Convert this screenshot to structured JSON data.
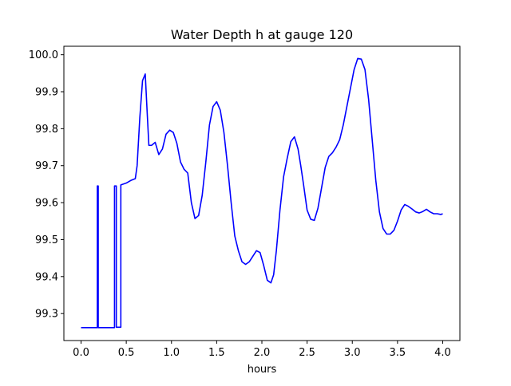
{
  "chart_data": {
    "type": "line",
    "title": "Water Depth h at gauge 120",
    "xlabel": "hours",
    "ylabel": "",
    "xlim": [
      -0.19,
      4.19
    ],
    "ylim": [
      99.227,
      100.023
    ],
    "xticks": [
      0.0,
      0.5,
      1.0,
      1.5,
      2.0,
      2.5,
      3.0,
      3.5,
      4.0
    ],
    "xtick_labels": [
      "0.0",
      "0.5",
      "1.0",
      "1.5",
      "2.0",
      "2.5",
      "3.0",
      "3.5",
      "4.0"
    ],
    "yticks": [
      99.3,
      99.4,
      99.5,
      99.6,
      99.7,
      99.8,
      99.9,
      100.0
    ],
    "ytick_labels": [
      "99.3",
      "99.4",
      "99.5",
      "99.6",
      "99.7",
      "99.8",
      "99.9",
      "100.0"
    ],
    "grid": false,
    "legend": "none",
    "series": [
      {
        "color": "#0000ff",
        "x": [
          0.0,
          0.18,
          0.18,
          0.19,
          0.19,
          0.35,
          0.37,
          0.37,
          0.39,
          0.39,
          0.43,
          0.44,
          0.44,
          0.5,
          0.55,
          0.6,
          0.62,
          0.65,
          0.68,
          0.71,
          0.73,
          0.75,
          0.78,
          0.82,
          0.86,
          0.9,
          0.94,
          0.98,
          1.02,
          1.06,
          1.1,
          1.14,
          1.18,
          1.22,
          1.26,
          1.3,
          1.34,
          1.38,
          1.42,
          1.46,
          1.5,
          1.54,
          1.58,
          1.62,
          1.66,
          1.7,
          1.74,
          1.78,
          1.82,
          1.86,
          1.9,
          1.94,
          1.98,
          2.02,
          2.06,
          2.1,
          2.13,
          2.16,
          2.2,
          2.24,
          2.28,
          2.32,
          2.36,
          2.4,
          2.43,
          2.46,
          2.5,
          2.54,
          2.58,
          2.62,
          2.66,
          2.7,
          2.74,
          2.78,
          2.82,
          2.86,
          2.9,
          2.94,
          2.98,
          3.02,
          3.06,
          3.1,
          3.14,
          3.18,
          3.22,
          3.26,
          3.3,
          3.34,
          3.38,
          3.42,
          3.46,
          3.5,
          3.54,
          3.58,
          3.62,
          3.66,
          3.7,
          3.74,
          3.78,
          3.82,
          3.86,
          3.9,
          3.94,
          3.98,
          4.0
        ],
        "y": [
          99.262,
          99.262,
          99.645,
          99.645,
          99.262,
          99.262,
          99.262,
          99.645,
          99.645,
          99.263,
          99.263,
          99.263,
          99.648,
          99.653,
          99.66,
          99.665,
          99.7,
          99.83,
          99.93,
          99.948,
          99.85,
          99.755,
          99.755,
          99.763,
          99.73,
          99.745,
          99.785,
          99.796,
          99.79,
          99.76,
          99.71,
          99.69,
          99.68,
          99.6,
          99.557,
          99.565,
          99.62,
          99.71,
          99.81,
          99.86,
          99.873,
          99.85,
          99.79,
          99.7,
          99.6,
          99.51,
          99.47,
          99.44,
          99.433,
          99.44,
          99.455,
          99.47,
          99.465,
          99.43,
          99.39,
          99.383,
          99.405,
          99.47,
          99.58,
          99.67,
          99.72,
          99.765,
          99.778,
          99.745,
          99.7,
          99.65,
          99.58,
          99.555,
          99.552,
          99.585,
          99.64,
          99.695,
          99.725,
          99.735,
          99.75,
          99.77,
          99.81,
          99.86,
          99.91,
          99.96,
          99.99,
          99.988,
          99.96,
          99.88,
          99.77,
          99.66,
          99.575,
          99.53,
          99.515,
          99.515,
          99.525,
          99.55,
          99.58,
          99.595,
          99.59,
          99.583,
          99.575,
          99.572,
          99.576,
          99.582,
          99.575,
          99.57,
          99.57,
          99.568,
          99.57
        ]
      }
    ]
  }
}
